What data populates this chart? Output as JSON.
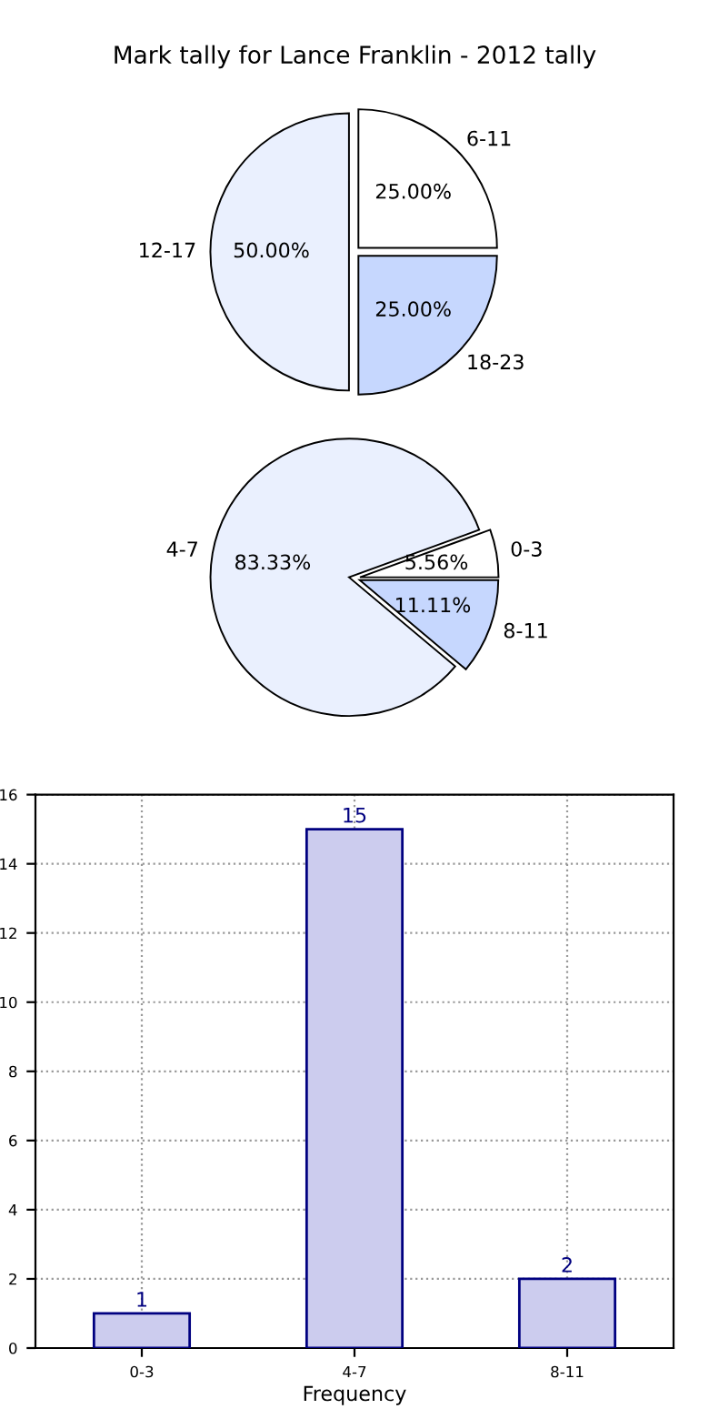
{
  "chart_data": [
    {
      "type": "pie",
      "title": "Mark tally for Lance Franklin - 2012 tally",
      "categories": [
        "6-11",
        "12-17",
        "18-23"
      ],
      "values": [
        25,
        50,
        25
      ],
      "value_labels": [
        "25.00%",
        "50.00%",
        "25.00%"
      ],
      "colors": [
        "#ffffff",
        "#eaf0fe",
        "#c6d7fe"
      ]
    },
    {
      "type": "pie",
      "categories": [
        "0-3",
        "4-7",
        "8-11"
      ],
      "values": [
        5.56,
        83.33,
        11.11
      ],
      "value_labels": [
        "5.56%",
        "83.33%",
        "11.11%"
      ],
      "colors": [
        "#ffffff",
        "#eaf0fe",
        "#c6d7fe"
      ]
    },
    {
      "type": "bar",
      "categories": [
        "0-3",
        "4-7",
        "8-11"
      ],
      "values": [
        1,
        15,
        2
      ],
      "color": "#ccccee",
      "xlabel": "Frequency",
      "ylim": [
        0,
        16
      ],
      "yticks": [
        0,
        2,
        4,
        6,
        8,
        10,
        12,
        14,
        16
      ],
      "grid": true,
      "data_labels": true
    }
  ]
}
